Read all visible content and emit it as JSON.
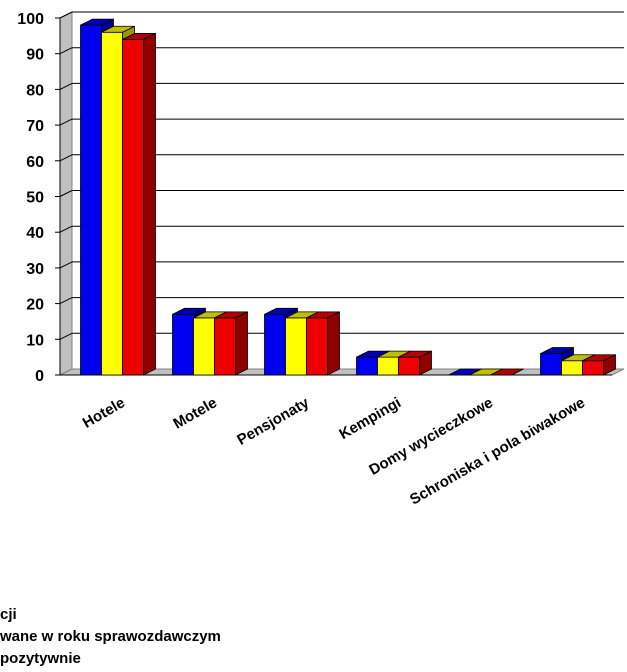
{
  "chart_data": {
    "type": "bar",
    "categories": [
      "Hotele",
      "Motele",
      "Pensjonaty",
      "Kempingi",
      "Domy wycieczkowe",
      "Schroniska i pola biwakowe"
    ],
    "series": [
      {
        "values": [
          98,
          17,
          17,
          5,
          0,
          6
        ],
        "color": "#0000ee"
      },
      {
        "values": [
          96,
          16,
          16,
          5,
          0,
          4
        ],
        "color": "#ffff00"
      },
      {
        "values": [
          94,
          16,
          16,
          5,
          0,
          4
        ],
        "color": "#ee0000"
      }
    ],
    "yticks": [
      "0",
      "10",
      "20",
      "30",
      "40",
      "50",
      "60",
      "70",
      "80",
      "90",
      "100"
    ],
    "ylim": [
      0,
      100
    ],
    "grid": true,
    "three_d": true,
    "legend": [
      "cji",
      "wane w roku sprawozdawczym",
      "pozytywnie"
    ]
  }
}
